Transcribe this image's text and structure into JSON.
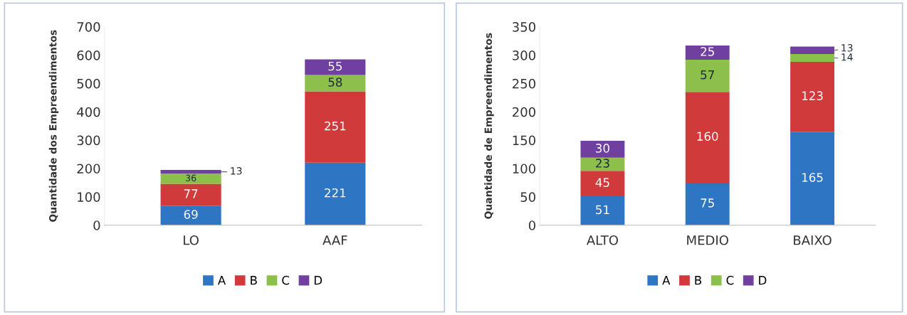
{
  "chart_data": [
    {
      "type": "bar",
      "stacked": true,
      "ylabel": "Quantidade dos Empreendimentos",
      "categories": [
        "LO",
        "AAF"
      ],
      "ylim": [
        0,
        700
      ],
      "yticks": [
        0,
        100,
        200,
        300,
        400,
        500,
        600,
        700
      ],
      "grid": false,
      "legend": "bottom",
      "data_labels": true,
      "series": [
        {
          "name": "A",
          "color": "#2e75c4",
          "values": [
            69,
            221
          ]
        },
        {
          "name": "B",
          "color": "#d13a3a",
          "values": [
            77,
            251
          ]
        },
        {
          "name": "C",
          "color": "#8cc04a",
          "values": [
            36,
            58
          ]
        },
        {
          "name": "D",
          "color": "#7040a0",
          "values": [
            13,
            55
          ]
        }
      ]
    },
    {
      "type": "bar",
      "stacked": true,
      "ylabel": "Quantidade de Empreendimentos",
      "categories": [
        "ALTO",
        "MEDIO",
        "BAIXO"
      ],
      "ylim": [
        0,
        350
      ],
      "yticks": [
        0,
        50,
        100,
        150,
        200,
        250,
        300,
        350
      ],
      "grid": false,
      "legend": "bottom",
      "data_labels": true,
      "series": [
        {
          "name": "A",
          "color": "#2e75c4",
          "values": [
            51,
            75,
            165
          ]
        },
        {
          "name": "B",
          "color": "#d13a3a",
          "values": [
            45,
            160,
            123
          ]
        },
        {
          "name": "C",
          "color": "#8cc04a",
          "values": [
            23,
            57,
            14
          ]
        },
        {
          "name": "D",
          "color": "#7040a0",
          "values": [
            30,
            25,
            13
          ]
        }
      ]
    }
  ]
}
